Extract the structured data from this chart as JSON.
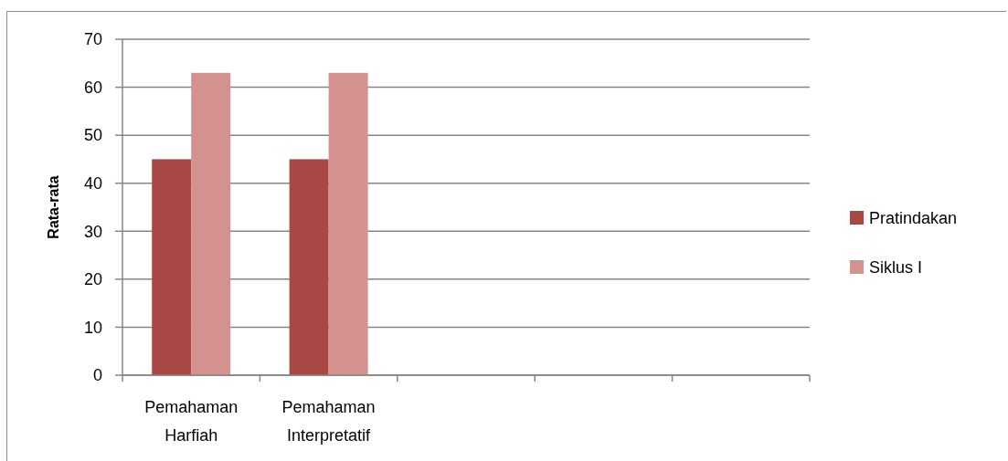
{
  "chart_data": {
    "type": "bar",
    "ylabel": "Rata-rata",
    "categories": [
      "Pemahaman Harfiah",
      "Pemahaman Interpretatif",
      null,
      null,
      null
    ],
    "series": [
      {
        "name": "Pratindakan",
        "color": "#a94744",
        "values": [
          45,
          45,
          null,
          null,
          null
        ]
      },
      {
        "name": "Siklus I",
        "color": "#d39190",
        "values": [
          63,
          63,
          null,
          null,
          null
        ]
      }
    ],
    "ylim": [
      0,
      70
    ],
    "yticks": [
      0,
      10,
      20,
      30,
      40,
      50,
      60,
      70
    ],
    "grid": "y",
    "legend": "right"
  }
}
